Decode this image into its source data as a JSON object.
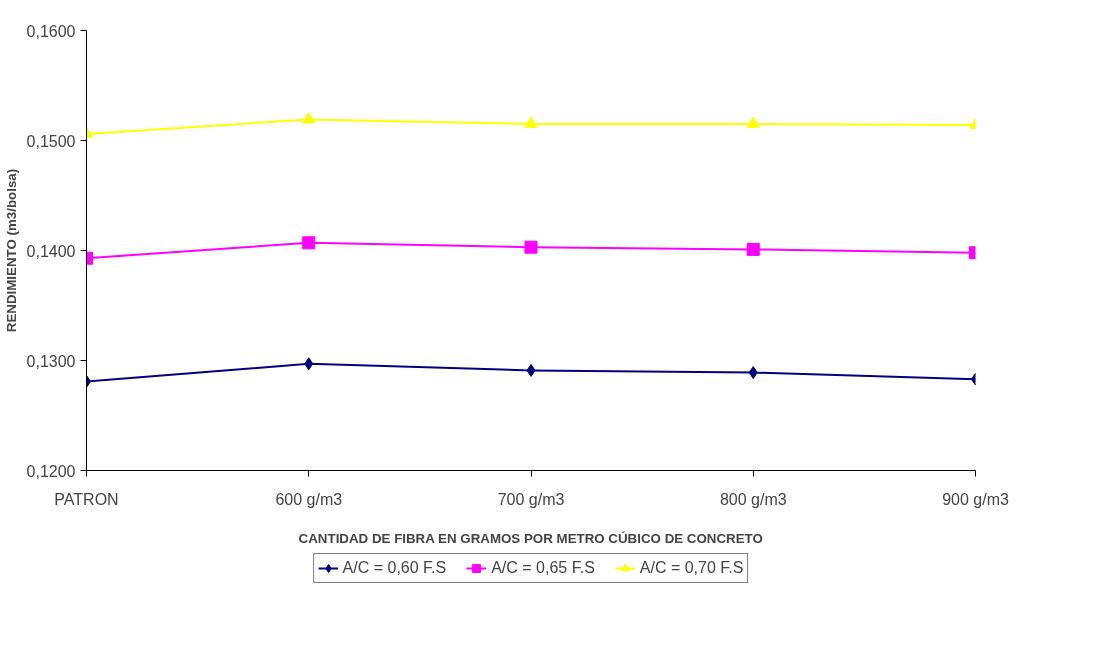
{
  "chart_data": {
    "type": "line",
    "xlabel": "CANTIDAD DE FIBRA EN GRAMOS POR METRO CÚBICO DE CONCRETO",
    "ylabel": "RENDIMIENTO (m3/bolsa)",
    "categories": [
      "PATRON",
      "600 g/m3",
      "700 g/m3",
      "800 g/m3",
      "900 g/m3"
    ],
    "ylim": [
      0.12,
      0.16
    ],
    "yticks": [
      {
        "value": 0.12,
        "label": "0,1200"
      },
      {
        "value": 0.13,
        "label": "0,1300"
      },
      {
        "value": 0.14,
        "label": "0,1400"
      },
      {
        "value": 0.15,
        "label": "0,1500"
      },
      {
        "value": 0.16,
        "label": "0,1600"
      }
    ],
    "grid": false,
    "legend": "bottom",
    "series": [
      {
        "name": "A/C = 0,60 F.S",
        "color": "#000080",
        "marker": "diamond",
        "values": [
          0.1281,
          0.1297,
          0.1291,
          0.1289,
          0.1283
        ]
      },
      {
        "name": "A/C = 0,65 F.S",
        "color": "#ff00ff",
        "marker": "square",
        "values": [
          0.1393,
          0.1407,
          0.1403,
          0.1401,
          0.1398
        ]
      },
      {
        "name": "A/C = 0,70 F.S",
        "color": "#ffff00",
        "marker": "triangle",
        "values": [
          0.1506,
          0.1519,
          0.1515,
          0.1515,
          0.1514
        ]
      }
    ]
  }
}
